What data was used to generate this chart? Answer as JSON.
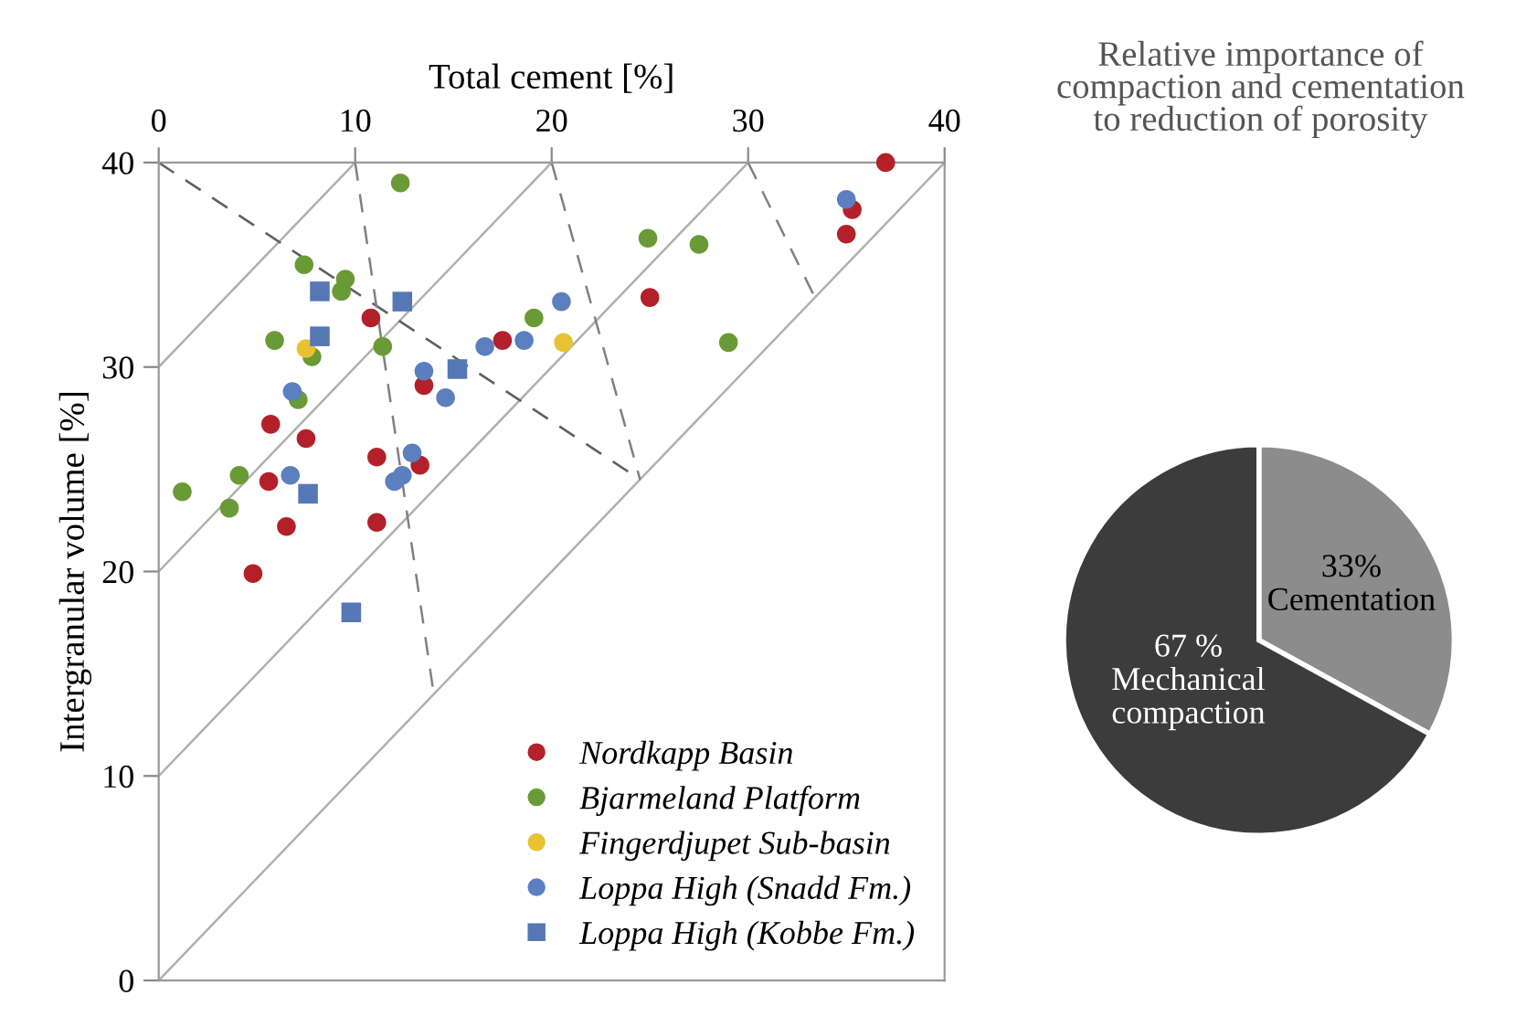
{
  "chart_data": [
    {
      "type": "scatter",
      "xlabel": "Total cement [%]",
      "ylabel": "Intergranular volume [%]",
      "xlim": [
        0,
        40
      ],
      "xticks": [
        0,
        10,
        20,
        30,
        40
      ],
      "ylim": [
        0,
        40
      ],
      "yticks": [
        0,
        10,
        20,
        30,
        40
      ],
      "grid": false,
      "legend": "bottom right",
      "series": [
        {
          "type": "line",
          "color": "#b0b0b0",
          "line_style": "solid",
          "x": [
            0,
            10
          ],
          "values": [
            30,
            40
          ]
        },
        {
          "type": "line",
          "color": "#b0b0b0",
          "line_style": "solid",
          "x": [
            0,
            20
          ],
          "values": [
            20,
            40
          ]
        },
        {
          "type": "line",
          "color": "#b0b0b0",
          "line_style": "solid",
          "x": [
            0,
            30
          ],
          "values": [
            10,
            40
          ]
        },
        {
          "type": "line",
          "color": "#b0b0b0",
          "line_style": "solid",
          "x": [
            0,
            40
          ],
          "values": [
            0,
            40
          ]
        },
        {
          "type": "line",
          "color": "#606060",
          "line_style": "dashed",
          "x": [
            0,
            24.5
          ],
          "values": [
            40,
            24.5
          ]
        },
        {
          "type": "line",
          "color": "#808080",
          "line_style": "dashed",
          "x": [
            10,
            14
          ],
          "values": [
            40,
            14
          ]
        },
        {
          "type": "line",
          "color": "#808080",
          "line_style": "dashed",
          "x": [
            20,
            24.5
          ],
          "values": [
            40,
            24.5
          ]
        },
        {
          "type": "line",
          "color": "#808080",
          "line_style": "dashed",
          "x": [
            30,
            33.4
          ],
          "values": [
            40,
            33.4
          ]
        },
        {
          "name": "Nordkapp Basin",
          "color": "#b3202a",
          "marker": "circle",
          "x": [
            37.0,
            35.3,
            35.0,
            25.0,
            17.5,
            10.8,
            13.5,
            5.7,
            7.5,
            11.1,
            13.3,
            5.6,
            6.5,
            11.1,
            4.8
          ],
          "values": [
            40.0,
            37.7,
            36.5,
            33.4,
            31.3,
            32.4,
            29.1,
            27.2,
            26.5,
            25.6,
            25.2,
            24.4,
            22.2,
            22.4,
            19.9
          ]
        },
        {
          "name": "Bjarmeland Platform",
          "color": "#6a9a35",
          "marker": "circle",
          "x": [
            12.3,
            24.9,
            27.5,
            7.4,
            9.5,
            9.3,
            19.1,
            5.9,
            11.4,
            29.0,
            7.8,
            7.1,
            4.1,
            1.2,
            3.6
          ],
          "values": [
            39.0,
            36.3,
            36.0,
            35.0,
            34.3,
            33.7,
            32.4,
            31.3,
            31.0,
            31.2,
            30.5,
            28.4,
            24.7,
            23.9,
            23.1
          ]
        },
        {
          "name": "Fingerdjupet Sub-basin",
          "color": "#e8c232",
          "marker": "circle",
          "x": [
            7.5,
            20.6
          ],
          "values": [
            30.9,
            31.2
          ]
        },
        {
          "name": "Loppa High (Snadd Fm.)",
          "color": "#5b7fbf",
          "marker": "circle",
          "x": [
            35.0,
            20.5,
            18.6,
            16.6,
            13.5,
            14.6,
            6.8,
            12.9,
            12.4,
            12.0,
            6.7
          ],
          "values": [
            38.2,
            33.2,
            31.3,
            31.0,
            29.8,
            28.5,
            28.8,
            25.8,
            24.7,
            24.4,
            24.7
          ]
        },
        {
          "name": "Loppa High (Kobbe Fm.)",
          "color": "#5677b5",
          "marker": "square",
          "x": [
            8.2,
            12.4,
            8.2,
            15.2,
            7.6,
            9.8
          ],
          "values": [
            33.7,
            33.2,
            31.5,
            29.9,
            23.8,
            18.0
          ]
        }
      ]
    },
    {
      "type": "pie",
      "title": "Relative importance of\ncompaction and cementation\nto reduction of porosity",
      "categories": [
        "Cementation",
        "Mechanical\ncompaction"
      ],
      "values": [
        33,
        67
      ],
      "value_labels": [
        "33%",
        "67 %"
      ],
      "colors": [
        "#8c8c8c",
        "#3c3c3c"
      ]
    }
  ]
}
